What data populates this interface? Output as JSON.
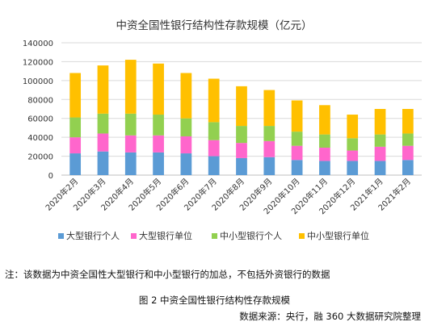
{
  "chart_data": {
    "type": "bar",
    "stacked": true,
    "title": "中资全国性银行结构性存款规模（亿元）",
    "categories": [
      "2020年2月",
      "2020年3月",
      "2020年4月",
      "2020年5月",
      "2020年6月",
      "2020年7月",
      "2020年8月",
      "2020年9月",
      "2020年10月",
      "2020年11月",
      "2020年12月",
      "2021年1月",
      "2021年2月"
    ],
    "series": [
      {
        "name": "大型银行个人",
        "color": "#5b9bd5",
        "values": [
          23000,
          25000,
          24000,
          24000,
          23000,
          20000,
          18000,
          19000,
          16000,
          15000,
          15000,
          15000,
          16000
        ]
      },
      {
        "name": "大型银行单位",
        "color": "#ff66cc",
        "values": [
          17000,
          19000,
          18000,
          18000,
          18000,
          17000,
          16000,
          17000,
          15000,
          14000,
          11000,
          15000,
          15000
        ]
      },
      {
        "name": "中小型银行个人",
        "color": "#92d050",
        "values": [
          21000,
          21000,
          23000,
          22000,
          19000,
          19000,
          18000,
          16000,
          15000,
          14000,
          13000,
          13000,
          13000
        ]
      },
      {
        "name": "中小型银行单位",
        "color": "#ffc000",
        "values": [
          47000,
          51000,
          57000,
          54000,
          48000,
          46000,
          42000,
          38000,
          33000,
          31000,
          25000,
          27000,
          26000
        ]
      }
    ],
    "ylim": [
      0,
      140000
    ],
    "yticks": [
      0,
      20000,
      40000,
      60000,
      80000,
      100000,
      120000,
      140000
    ],
    "grid": true,
    "legend": "bottom"
  },
  "footer": {
    "note": "注：该数据为中资全国性大型银行和中小型银行的加总，不包括外资银行的数据",
    "caption": "图 2 中资全国性银行结构性存款规模",
    "source": "数据来源：央行，融 360 大数据研究院整理"
  }
}
